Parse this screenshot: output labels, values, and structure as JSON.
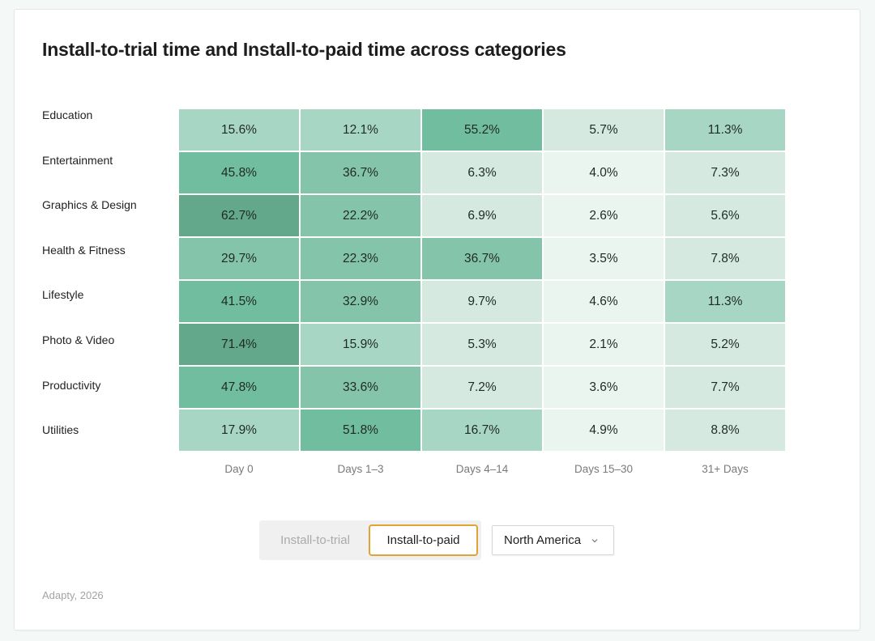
{
  "chart_data": {
    "type": "heatmap",
    "title": "Install-to-trial time and Install-to-paid time across categories",
    "categories": [
      "Education",
      "Entertainment",
      "Graphics & Design",
      "Health & Fitness",
      "Lifestyle",
      "Photo & Video",
      "Productivity",
      "Utilities"
    ],
    "columns": [
      "Day 0",
      "Days 1–3",
      "Days 4–14",
      "Days 15–30",
      "31+ Days"
    ],
    "values": [
      [
        15.6,
        12.1,
        55.2,
        5.7,
        11.3
      ],
      [
        45.8,
        36.7,
        6.3,
        4.0,
        7.3
      ],
      [
        62.7,
        22.2,
        6.9,
        2.6,
        5.6
      ],
      [
        29.7,
        22.3,
        36.7,
        3.5,
        7.8
      ],
      [
        41.5,
        32.9,
        9.7,
        4.6,
        11.3
      ],
      [
        71.4,
        15.9,
        5.3,
        2.1,
        5.2
      ],
      [
        47.8,
        33.6,
        7.2,
        3.6,
        7.7
      ],
      [
        17.9,
        51.8,
        16.7,
        4.9,
        8.8
      ]
    ],
    "value_suffix": "%",
    "color_scale": [
      "#eaf5f0",
      "#d5e9e1",
      "#a8d6c4",
      "#84c4ab",
      "#71bd9f",
      "#63a88b"
    ]
  },
  "controls": {
    "toggle_options": [
      "Install-to-trial",
      "Install-to-paid"
    ],
    "active_toggle": "Install-to-paid",
    "region": "North America"
  },
  "source": "Adapty, 2026",
  "colors": {
    "accent": "#e0a434",
    "background": "#f4f8f6"
  }
}
